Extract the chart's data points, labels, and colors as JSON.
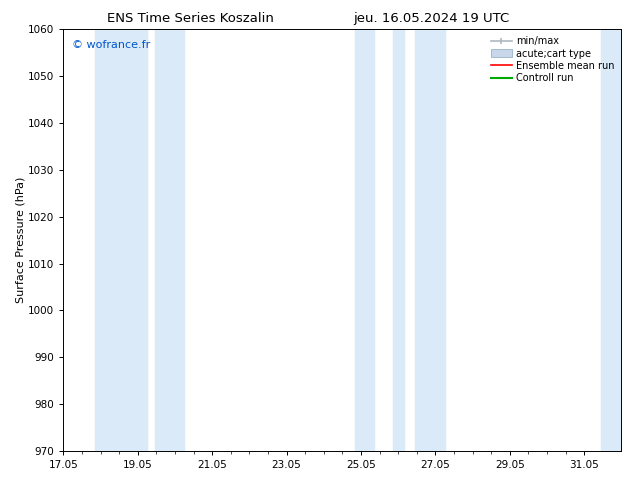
{
  "title_left": "ENS Time Series Koszalin",
  "title_right": "jeu. 16.05.2024 19 UTC",
  "ylabel": "Surface Pressure (hPa)",
  "watermark": "© wofrance.fr",
  "watermark_color": "#0055cc",
  "ylim": [
    970,
    1060
  ],
  "yticks": [
    970,
    980,
    990,
    1000,
    1010,
    1020,
    1030,
    1040,
    1050,
    1060
  ],
  "xlim_start": 17.05,
  "xlim_end": 32.05,
  "xticks": [
    17.05,
    19.05,
    21.05,
    23.05,
    25.05,
    27.05,
    29.05,
    31.05
  ],
  "xtick_labels": [
    "17.05",
    "19.05",
    "21.05",
    "23.05",
    "25.05",
    "27.05",
    "29.05",
    "31.05"
  ],
  "shaded_bands": [
    {
      "x_start": 17.9,
      "x_end": 19.3
    },
    {
      "x_start": 19.5,
      "x_end": 20.3
    },
    {
      "x_start": 24.9,
      "x_end": 25.4
    },
    {
      "x_start": 25.9,
      "x_end": 26.2
    },
    {
      "x_start": 26.5,
      "x_end": 27.3
    },
    {
      "x_start": 31.5,
      "x_end": 32.05
    }
  ],
  "shade_color": "#daeaf8",
  "legend_entries": [
    {
      "label": "min/max",
      "color": "#b0b8c0",
      "lw": 1.2,
      "style": "minmax"
    },
    {
      "label": "acute;cart type",
      "color": "#c8d8ea",
      "lw": 6,
      "style": "fill"
    },
    {
      "label": "Ensemble mean run",
      "color": "#ff0000",
      "lw": 1.2,
      "style": "line"
    },
    {
      "label": "Controll run",
      "color": "#00aa00",
      "lw": 1.5,
      "style": "line"
    }
  ],
  "bg_color": "#ffffff",
  "axes_bg_color": "#ffffff",
  "title_fontsize": 9.5,
  "tick_fontsize": 7.5,
  "ylabel_fontsize": 8,
  "legend_fontsize": 7,
  "watermark_fontsize": 8
}
